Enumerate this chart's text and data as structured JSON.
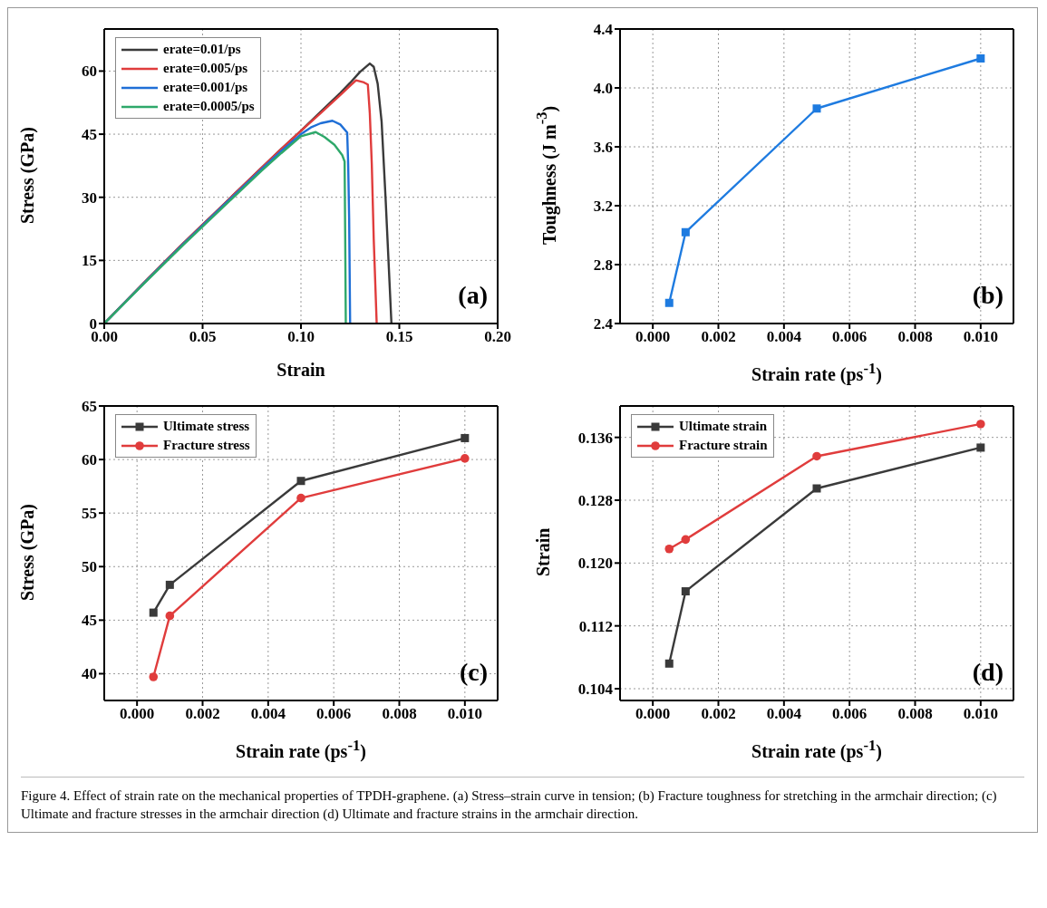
{
  "chart_data": [
    {
      "type": "line",
      "xlabel": "Strain",
      "ylabel": "Stress (GPa)",
      "xlim": [
        0,
        0.2
      ],
      "xticks": [
        {
          "value": 0,
          "label": "0.00"
        },
        0.05,
        {
          "value": 0.1,
          "label": "0.10"
        },
        0.15,
        {
          "value": 0.2,
          "label": "0.20"
        }
      ],
      "ylim": [
        0,
        70
      ],
      "yticks": [
        0,
        15,
        30,
        45,
        60
      ],
      "grid": true,
      "legend": "top left",
      "marker": "none",
      "line_style": "solid",
      "annotations": [
        "(a)"
      ],
      "series": [
        {
          "name": "erate=0.01/ps",
          "color": "#3a3a3a",
          "x": [
            0,
            0.02,
            0.04,
            0.06,
            0.08,
            0.09,
            0.1,
            0.11,
            0.12,
            0.125,
            0.13,
            0.135,
            0.137,
            0.139,
            0.141,
            0.143,
            0.145,
            0.146
          ],
          "values": [
            0,
            9.6,
            19,
            28,
            37,
            41.5,
            45.8,
            50.3,
            54.8,
            57.2,
            59.8,
            61.8,
            61,
            57,
            48,
            30,
            10,
            0
          ]
        },
        {
          "name": "erate=0.005/ps",
          "color": "#e03c3c",
          "x": [
            0,
            0.02,
            0.04,
            0.06,
            0.08,
            0.09,
            0.1,
            0.11,
            0.12,
            0.125,
            0.128,
            0.132,
            0.134,
            0.135,
            0.136,
            0.137,
            0.1385
          ],
          "values": [
            0,
            9.6,
            19,
            28,
            37,
            41.5,
            45.8,
            50,
            54.3,
            56.5,
            57.8,
            57.3,
            56.8,
            50,
            38,
            20,
            0
          ]
        },
        {
          "name": "erate=0.001/ps",
          "color": "#1f6fd6",
          "x": [
            0,
            0.02,
            0.04,
            0.06,
            0.08,
            0.09,
            0.1,
            0.105,
            0.11,
            0.116,
            0.12,
            0.1235,
            0.124,
            0.1245,
            0.125
          ],
          "values": [
            0,
            9.5,
            18.8,
            27.8,
            36.7,
            41,
            45,
            46.6,
            47.6,
            48.2,
            47.3,
            45.4,
            38,
            25,
            0
          ]
        },
        {
          "name": "erate=0.0005/ps",
          "color": "#2ea86a",
          "x": [
            0,
            0.02,
            0.04,
            0.06,
            0.08,
            0.09,
            0.1,
            0.1075,
            0.112,
            0.117,
            0.121,
            0.1222,
            0.1225,
            0.1228
          ],
          "values": [
            0,
            9.4,
            18.6,
            27.5,
            36.3,
            40.5,
            44.5,
            45.5,
            44.3,
            42.5,
            40,
            38.5,
            20,
            0
          ]
        }
      ]
    },
    {
      "type": "line",
      "xlabel": "Strain rate (ps$^{-1}$)",
      "ylabel": "Toughness (J m$^{-3}$)",
      "xlim": [
        -0.001,
        0.011
      ],
      "xticks": [
        {
          "value": 0,
          "label": "0.000"
        },
        0.002,
        0.004,
        0.006,
        0.008,
        {
          "value": 0.01,
          "label": "0.010"
        }
      ],
      "ylim": [
        2.4,
        4.4
      ],
      "yticks": [
        2.4,
        2.8,
        3.2,
        3.6,
        {
          "value": 4,
          "label": "4.0"
        },
        4.4
      ],
      "grid": true,
      "marker": "square",
      "line_style": "solid",
      "annotations": [
        "(b)"
      ],
      "series": [
        {
          "color": "#1e7be0",
          "x": [
            0.0005,
            0.001,
            0.005,
            0.01
          ],
          "values": [
            2.54,
            3.02,
            3.86,
            4.2
          ]
        }
      ]
    },
    {
      "type": "line",
      "xlabel": "Strain rate (ps$^{-1}$)",
      "ylabel": "Stress (GPa)",
      "xlim": [
        -0.001,
        0.011
      ],
      "xticks": [
        {
          "value": 0,
          "label": "0.000"
        },
        0.002,
        0.004,
        0.006,
        0.008,
        {
          "value": 0.01,
          "label": "0.010"
        }
      ],
      "ylim": [
        37.5,
        65
      ],
      "yticks": [
        40,
        45,
        50,
        55,
        60,
        65
      ],
      "grid": true,
      "legend": "top left",
      "line_style": "solid",
      "annotations": [
        "(c)"
      ],
      "series": [
        {
          "name": "Ultimate stress",
          "color": "#3a3a3a",
          "marker": "square",
          "x": [
            0.0005,
            0.001,
            0.005,
            0.01
          ],
          "values": [
            45.7,
            48.3,
            58,
            62
          ]
        },
        {
          "name": "Fracture stress",
          "color": "#e03c3c",
          "marker": "circle",
          "x": [
            0.0005,
            0.001,
            0.005,
            0.01
          ],
          "values": [
            39.7,
            45.4,
            56.4,
            60.1
          ]
        }
      ]
    },
    {
      "type": "line",
      "xlabel": "Strain rate (ps$^{-1}$)",
      "ylabel": "Strain",
      "xlim": [
        -0.001,
        0.011
      ],
      "xticks": [
        {
          "value": 0,
          "label": "0.000"
        },
        0.002,
        0.004,
        0.006,
        0.008,
        {
          "value": 0.01,
          "label": "0.010"
        }
      ],
      "ylim": [
        0.1025,
        0.14
      ],
      "yticks": [
        0.104,
        0.112,
        {
          "value": 0.12,
          "label": "0.120"
        },
        0.128,
        0.136
      ],
      "grid": true,
      "legend": "top left",
      "line_style": "solid",
      "annotations": [
        "(d)",
        "Figure 4. Effect of strain rate on the mechanical properties of TPDH-graphene. (a) Stress–strain curve in tension; (b) Fracture toughness for stretching in the armchair direction; (c) Ultimate and fracture stresses in the armchair direction (d) Ultimate and fracture strains in the armchair direction."
      ],
      "series": [
        {
          "name": "Ultimate strain",
          "color": "#3a3a3a",
          "marker": "square",
          "x": [
            0.0005,
            0.001,
            0.005,
            0.01
          ],
          "values": [
            0.1072,
            0.1164,
            0.1295,
            0.1347
          ]
        },
        {
          "name": "Fracture strain",
          "color": "#e03c3c",
          "marker": "circle",
          "x": [
            0.0005,
            0.001,
            0.005,
            0.01
          ],
          "values": [
            0.1218,
            0.123,
            0.1336,
            0.1377
          ]
        }
      ]
    }
  ]
}
